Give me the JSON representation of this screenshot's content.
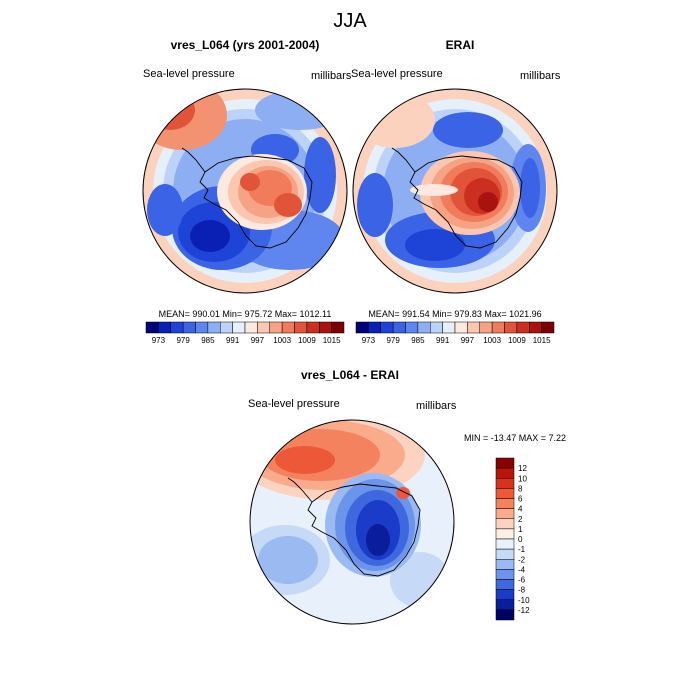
{
  "title": "JJA",
  "panels": [
    {
      "id": "model",
      "title": "vres_L064 (yrs 2001-2004)",
      "left_label": "Sea-level pressure",
      "right_label": "millibars",
      "stats": "MEAN= 990.01  Min= 975.72  Max= 1012.11"
    },
    {
      "id": "obs",
      "title": "ERAI",
      "left_label": "Sea-level pressure",
      "right_label": "millibars",
      "stats": "MEAN= 991.54  Min= 979.83  Max= 1021.96"
    },
    {
      "id": "diff",
      "title": "vres_L064 - ERAI",
      "left_label": "Sea-level pressure",
      "right_label": "millibars",
      "stats": "MIN = -13.47 MAX =   7.22"
    }
  ],
  "colorbar_abs": {
    "tick_labels": [
      "973",
      "979",
      "985",
      "991",
      "997",
      "1003",
      "1009",
      "1015"
    ],
    "colors": [
      "#00007a",
      "#0a1fb4",
      "#1d44d6",
      "#3a63e6",
      "#5f86ef",
      "#8eaef4",
      "#bcd2f8",
      "#e6f0fb",
      "#fde9df",
      "#fbc7b0",
      "#f6a385",
      "#f07c5c",
      "#e2543a",
      "#cb2f20",
      "#a8130f",
      "#7a0005"
    ]
  },
  "colorbar_diff": {
    "tick_labels": [
      "12",
      "10",
      "8",
      "6",
      "4",
      "2",
      "1",
      "0",
      "-1",
      "-2",
      "-4",
      "-6",
      "-8",
      "-10",
      "-12"
    ],
    "colors": [
      "#8a0000",
      "#b81408",
      "#d9321c",
      "#ec5838",
      "#f5825f",
      "#f9ab8c",
      "#fcd3c0",
      "#fdeee6",
      "#e8f1fb",
      "#c6d9f6",
      "#9bbaf1",
      "#6c94ea",
      "#3f68de",
      "#1a3cc8",
      "#0a1e9c",
      "#000066"
    ]
  },
  "chart_data": [
    {
      "type": "heatmap",
      "title": "vres_L064 (yrs 2001-2004)",
      "variable": "Sea-level pressure",
      "units": "millibars",
      "projection": "south polar stereographic",
      "contour_levels": [
        973,
        976,
        979,
        982,
        985,
        988,
        991,
        994,
        997,
        1000,
        1003,
        1006,
        1009,
        1012,
        1015
      ],
      "mean": 990.01,
      "min": 975.72,
      "max": 1012.11
    },
    {
      "type": "heatmap",
      "title": "ERAI",
      "variable": "Sea-level pressure",
      "units": "millibars",
      "projection": "south polar stereographic",
      "contour_levels": [
        973,
        976,
        979,
        982,
        985,
        988,
        991,
        994,
        997,
        1000,
        1003,
        1006,
        1009,
        1012,
        1015
      ],
      "mean": 991.54,
      "min": 979.83,
      "max": 1021.96
    },
    {
      "type": "heatmap",
      "title": "vres_L064 - ERAI",
      "variable": "Sea-level pressure",
      "units": "millibars",
      "projection": "south polar stereographic",
      "contour_levels": [
        -12,
        -10,
        -8,
        -6,
        -4,
        -2,
        -1,
        0,
        1,
        2,
        4,
        6,
        8,
        10,
        12
      ],
      "min": -13.47,
      "max": 7.22
    }
  ]
}
